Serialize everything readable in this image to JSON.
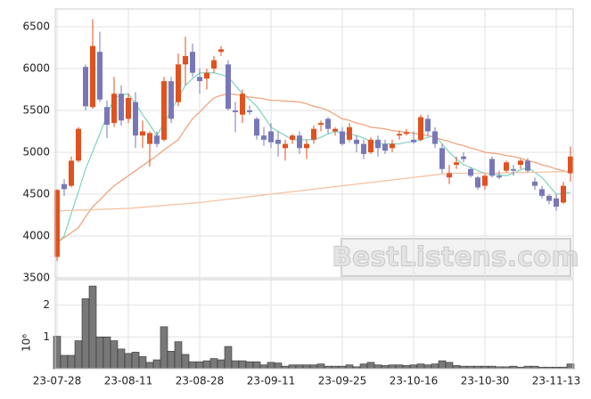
{
  "chart_data": {
    "type": "candlestick",
    "categories": [
      "23-07-28",
      null,
      null,
      null,
      null,
      null,
      null,
      null,
      null,
      null,
      "23-08-11",
      null,
      null,
      null,
      null,
      null,
      null,
      null,
      null,
      null,
      "23-08-28",
      null,
      null,
      null,
      null,
      null,
      null,
      null,
      null,
      null,
      "23-09-11",
      null,
      null,
      null,
      null,
      null,
      null,
      null,
      null,
      null,
      "23-09-25",
      null,
      null,
      null,
      null,
      null,
      null,
      null,
      null,
      null,
      "23-10-16",
      null,
      null,
      null,
      null,
      null,
      null,
      null,
      null,
      null,
      "23-10-30",
      null,
      null,
      null,
      null,
      null,
      null,
      null,
      null,
      null,
      "23-11-13",
      null,
      null
    ],
    "open": [
      3750,
      4620,
      4600,
      4900,
      6020,
      5540,
      6200,
      5540,
      5350,
      5700,
      5400,
      5600,
      5200,
      5100,
      5200,
      5150,
      5850,
      5600,
      6050,
      6200,
      5900,
      5880,
      6000,
      6200,
      6050,
      5500,
      5450,
      5500,
      5400,
      5200,
      5250,
      5150,
      5050,
      5150,
      5200,
      5050,
      5150,
      5330,
      5400,
      5250,
      5250,
      5150,
      5150,
      5100,
      5000,
      5150,
      5100,
      5050,
      5200,
      5220,
      5150,
      5150,
      5400,
      5250,
      5050,
      4700,
      4850,
      4950,
      4800,
      4700,
      4600,
      4920,
      4720,
      4780,
      4800,
      4850,
      4900,
      4650,
      4560,
      4480,
      4450,
      4400,
      4750
    ],
    "high": [
      4560,
      4680,
      4950,
      5300,
      6050,
      6590,
      6440,
      5620,
      5900,
      5800,
      5700,
      5720,
      5380,
      5250,
      5250,
      5900,
      5900,
      6180,
      6380,
      6300,
      6000,
      6000,
      6150,
      6270,
      6100,
      5600,
      5750,
      5560,
      5420,
      5300,
      5350,
      5250,
      5150,
      5220,
      5250,
      5150,
      5320,
      5380,
      5420,
      5300,
      5300,
      5350,
      5200,
      5150,
      5180,
      5200,
      5150,
      5150,
      5260,
      5280,
      5250,
      5450,
      5450,
      5300,
      5100,
      4850,
      4950,
      5000,
      4820,
      4720,
      4750,
      4950,
      4780,
      4900,
      4850,
      4920,
      4930,
      4700,
      4600,
      4500,
      4500,
      4650,
      5070
    ],
    "low": [
      3700,
      4480,
      4580,
      4880,
      5500,
      5520,
      5600,
      5170,
      5300,
      5320,
      5350,
      5050,
      5050,
      4830,
      5060,
      5130,
      5350,
      5550,
      5800,
      5900,
      5700,
      5750,
      5950,
      6150,
      5500,
      5240,
      5350,
      5450,
      5150,
      5080,
      5050,
      4950,
      4900,
      5100,
      4980,
      4920,
      5100,
      5250,
      5220,
      5200,
      5080,
      5120,
      5000,
      4920,
      4980,
      4950,
      4980,
      5000,
      5150,
      5200,
      5100,
      5130,
      5200,
      5050,
      4750,
      4620,
      4800,
      4880,
      4700,
      4550,
      4550,
      4700,
      4680,
      4760,
      4720,
      4800,
      4760,
      4550,
      4450,
      4380,
      4300,
      4380,
      4650
    ],
    "close": [
      4550,
      4560,
      4900,
      5280,
      5550,
      6270,
      5630,
      5330,
      5700,
      5380,
      5650,
      5200,
      5250,
      5230,
      5100,
      5850,
      5400,
      6050,
      6150,
      5950,
      5850,
      5950,
      6100,
      6230,
      5520,
      5480,
      5700,
      5480,
      5200,
      5150,
      5120,
      5100,
      5100,
      5200,
      5050,
      5100,
      5280,
      5350,
      5280,
      5280,
      5100,
      5300,
      5100,
      4980,
      5150,
      5050,
      5020,
      5100,
      5220,
      5240,
      5120,
      5420,
      5250,
      5100,
      4800,
      4750,
      4880,
      4920,
      4720,
      4580,
      4720,
      4720,
      4700,
      4880,
      4780,
      4900,
      4780,
      4600,
      4480,
      4420,
      4350,
      4600,
      4950
    ],
    "up_color": "#e0521f",
    "down_color": "#7878b8",
    "ylim": [
      3500,
      6713
    ],
    "yticks": [
      3500,
      4000,
      4500,
      5000,
      5500,
      6000,
      6500
    ],
    "grid": true,
    "overlays": [
      {
        "color": "#86d6c2",
        "values": [
          3920,
          4000,
          4270,
          4530,
          4800,
          5010,
          5220,
          5440,
          5650,
          5680,
          5700,
          5580,
          5450,
          5330,
          5200,
          5350,
          5500,
          5650,
          5800,
          5880,
          5950,
          5950,
          5950,
          5930,
          5900,
          5800,
          5700,
          5630,
          5550,
          5430,
          5300,
          5250,
          5200,
          5150,
          5150,
          5150,
          5150,
          5180,
          5220,
          5250,
          5230,
          5220,
          5200,
          5170,
          5130,
          5100,
          5100,
          5100,
          5100,
          5120,
          5130,
          5150,
          5180,
          5200,
          5100,
          5000,
          4920,
          4850,
          4820,
          4780,
          4750,
          4740,
          4730,
          4720,
          4750,
          4790,
          4820,
          4760,
          4700,
          4600,
          4500,
          4510,
          4520
        ]
      },
      {
        "color": "#eda581",
        "values": [
          3920,
          3980,
          4040,
          4100,
          4230,
          4350,
          4430,
          4520,
          4600,
          4660,
          4720,
          4780,
          4840,
          4900,
          4960,
          5030,
          5090,
          5150,
          5280,
          5400,
          5480,
          5570,
          5650,
          5680,
          5700,
          5690,
          5680,
          5660,
          5650,
          5640,
          5620,
          5620,
          5610,
          5610,
          5600,
          5580,
          5550,
          5530,
          5500,
          5450,
          5400,
          5380,
          5350,
          5330,
          5300,
          5290,
          5280,
          5260,
          5250,
          5240,
          5230,
          5210,
          5200,
          5180,
          5150,
          5130,
          5100,
          5080,
          5050,
          5030,
          5000,
          4990,
          4980,
          4960,
          4950,
          4930,
          4900,
          4880,
          4850,
          4830,
          4800,
          4780,
          4750
        ]
      },
      {
        "color": "#f2c3a3",
        "values": [
          4300,
          4303,
          4306,
          4309,
          4312,
          4315,
          4318,
          4321,
          4324,
          4327,
          4330,
          4337,
          4344,
          4351,
          4358,
          4365,
          4372,
          4379,
          4386,
          4393,
          4400,
          4410,
          4420,
          4430,
          4440,
          4450,
          4460,
          4470,
          4480,
          4490,
          4500,
          4510,
          4520,
          4530,
          4540,
          4550,
          4560,
          4570,
          4580,
          4590,
          4600,
          4610,
          4620,
          4630,
          4640,
          4650,
          4660,
          4670,
          4680,
          4690,
          4700,
          4710,
          4720,
          4730,
          4740,
          4750,
          4750,
          4750,
          4750,
          4750,
          4750,
          4752,
          4753,
          4755,
          4757,
          4758,
          4760,
          4762,
          4763,
          4765,
          4767,
          4768,
          4770
        ]
      }
    ],
    "volume": {
      "axis_label": "10⁶",
      "color": "#787878",
      "ylim": [
        0,
        2.8
      ],
      "yticks": [
        1,
        2
      ],
      "values": [
        1.02,
        0.42,
        0.42,
        0.88,
        2.2,
        2.6,
        1.0,
        1.0,
        0.88,
        0.62,
        0.48,
        0.52,
        0.38,
        0.2,
        0.28,
        1.32,
        0.55,
        0.85,
        0.45,
        0.22,
        0.22,
        0.25,
        0.32,
        0.28,
        0.7,
        0.25,
        0.25,
        0.22,
        0.22,
        0.12,
        0.2,
        0.18,
        0.08,
        0.12,
        0.12,
        0.12,
        0.12,
        0.15,
        0.08,
        0.08,
        0.08,
        0.12,
        0.06,
        0.15,
        0.2,
        0.12,
        0.1,
        0.12,
        0.12,
        0.1,
        0.12,
        0.15,
        0.12,
        0.15,
        0.25,
        0.2,
        0.1,
        0.08,
        0.08,
        0.08,
        0.08,
        0.08,
        0.06,
        0.06,
        0.08,
        0.05,
        0.08,
        0.08,
        0.05,
        0.05,
        0.05,
        0.05,
        0.15
      ]
    },
    "watermark": "BestListens.com"
  }
}
